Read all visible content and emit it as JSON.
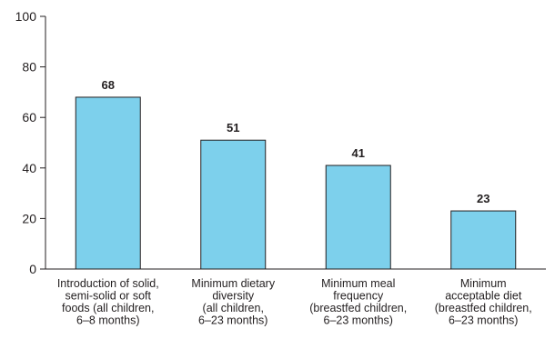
{
  "chart_data": {
    "type": "bar",
    "categories": [
      [
        "Introduction of solid,",
        "semi-solid or soft",
        "foods (all children,",
        "6–8 months)"
      ],
      [
        "Minimum dietary",
        "diversity",
        "(all children,",
        "6–23 months)"
      ],
      [
        "Minimum meal",
        "frequency",
        "(breastfed children,",
        "6–23 months)"
      ],
      [
        "Minimum",
        "acceptable diet",
        "(breastfed children,",
        "6–23 months)"
      ]
    ],
    "values": [
      68,
      51,
      41,
      23
    ],
    "ylim": [
      0,
      100
    ],
    "yticks": [
      0,
      20,
      40,
      60,
      80,
      100
    ],
    "grid": false,
    "bar_color": "#7dd0ec",
    "bar_edge_color": "#231f20",
    "axis_color": "#231f20"
  }
}
